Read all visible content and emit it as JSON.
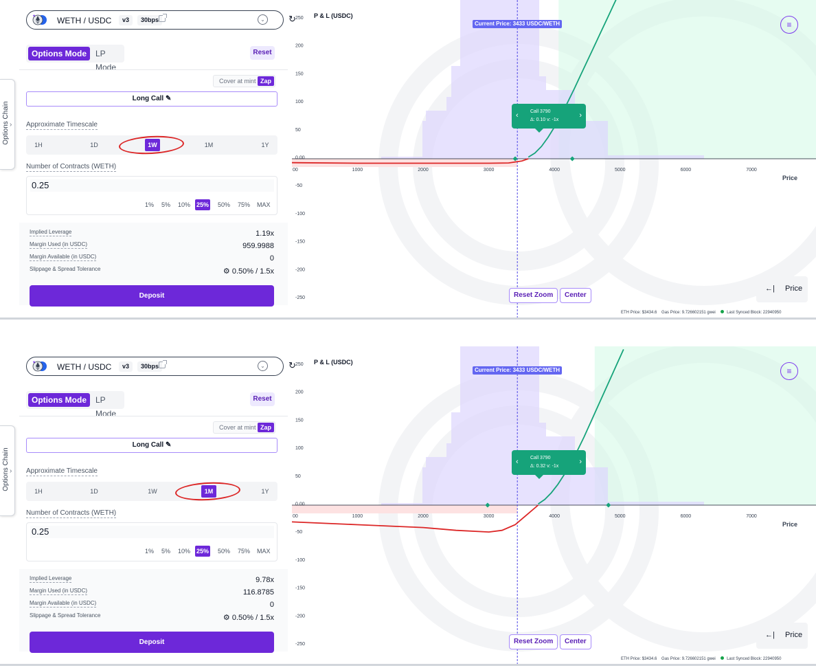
{
  "panels": [
    {
      "side_tab": {
        "label": "Options Chain",
        "chevron": "›"
      },
      "pair": {
        "name": "WETH / USDC",
        "version": "v3",
        "fee": "30bps",
        "refresh_icon": "↻"
      },
      "modes": {
        "options": "Options Mode",
        "lp": "LP Mode"
      },
      "reset": "Reset",
      "cover": {
        "label": "Cover at mint",
        "zap": "Zap"
      },
      "strategy": "Long Call ✎",
      "timescale": {
        "label": "Approximate Timescale",
        "options": [
          "1H",
          "1D",
          "1W",
          "1M",
          "1Y"
        ],
        "selected": "1W"
      },
      "contracts": {
        "label": "Number of Contracts (WETH)",
        "value": "0.25",
        "percents": [
          "1%",
          "5%",
          "10%",
          "25%",
          "50%",
          "75%",
          "MAX"
        ],
        "selected_percent": "25%"
      },
      "stats": {
        "leverage_label": "Implied Leverage",
        "leverage": "1.19x",
        "margin_used_label": "Margin Used (in USDC)",
        "margin_used": "959.9988",
        "margin_available_label": "Margin Available (in USDC)",
        "margin_available": "0",
        "slippage_label": "Slippage & Spread Tolerance",
        "slippage": "⚙ 0.50% / 1.5x"
      },
      "deposit": "Deposit",
      "chart_data": {
        "type": "line",
        "title": "P & L (USDC)",
        "xlabel": "Price",
        "ylabel": "P & L (USDC)",
        "x_ticks": [
          "00",
          "1000",
          "2000",
          "3000",
          "4000",
          "5000",
          "6000",
          "7000"
        ],
        "y_ticks": [
          "250",
          "200",
          "150",
          "100",
          "50",
          "0.00",
          "-50",
          "-100",
          "-150",
          "-200",
          "-250"
        ],
        "ylim": [
          -250,
          250
        ],
        "current_price_label": "Current Price: 3433 USDC/WETH",
        "current_price": 3433,
        "series": [
          {
            "color": "#16a37a",
            "x": [
              3600,
              3700,
              3800,
              3900,
              4000,
              4100,
              4200,
              4300,
              4400,
              4500,
              4600,
              4700,
              4800,
              4900,
              5000
            ],
            "y": [
              3,
              10,
              22,
              38,
              57,
              78,
              101,
              125,
              150,
              175,
              200,
              225,
              250,
              275,
              300
            ]
          },
          {
            "color": "#dc2626",
            "x": [
              0,
              1000,
              2000,
              3000,
              3300,
              3500,
              3600
            ],
            "y": [
              -7,
              -8,
              -8,
              -8,
              -7.5,
              -4,
              0
            ]
          }
        ],
        "breakeven_markers": [
          3400,
          4270
        ],
        "tooltip": {
          "line1": "Call 3790",
          "line2": "Δ: 0.10   v: -1x",
          "prev": "‹",
          "next": "›"
        },
        "menu_icon": "≡",
        "buttons": {
          "reset_zoom": "Reset Zoom",
          "center": "Center"
        },
        "price_toggle": {
          "arrow": "←|",
          "label": "Price"
        }
      },
      "status": {
        "eth_price": "ETH Price: $3434.6",
        "gas_price": "Gas Price: 9.726602151 gwei",
        "last_block": "Last Synced Block: 22940950"
      }
    },
    {
      "side_tab": {
        "label": "Options Chain",
        "chevron": "›"
      },
      "pair": {
        "name": "WETH / USDC",
        "version": "v3",
        "fee": "30bps",
        "refresh_icon": "↻"
      },
      "modes": {
        "options": "Options Mode",
        "lp": "LP Mode"
      },
      "reset": "Reset",
      "cover": {
        "label": "Cover at mint",
        "zap": "Zap"
      },
      "strategy": "Long Call ✎",
      "timescale": {
        "label": "Approximate Timescale",
        "options": [
          "1H",
          "1D",
          "1W",
          "1M",
          "1Y"
        ],
        "selected": "1M"
      },
      "contracts": {
        "label": "Number of Contracts (WETH)",
        "value": "0.25",
        "percents": [
          "1%",
          "5%",
          "10%",
          "25%",
          "50%",
          "75%",
          "MAX"
        ],
        "selected_percent": "25%"
      },
      "stats": {
        "leverage_label": "Implied Leverage",
        "leverage": "9.78x",
        "margin_used_label": "Margin Used (in USDC)",
        "margin_used": "116.8785",
        "margin_available_label": "Margin Available (in USDC)",
        "margin_available": "0",
        "slippage_label": "Slippage & Spread Tolerance",
        "slippage": "⚙ 0.50% / 1.5x"
      },
      "deposit": "Deposit",
      "chart_data": {
        "type": "line",
        "title": "P & L (USDC)",
        "xlabel": "Price",
        "ylabel": "P & L (USDC)",
        "x_ticks": [
          "00",
          "1000",
          "2000",
          "3000",
          "4000",
          "5000",
          "6000",
          "7000"
        ],
        "y_ticks": [
          "250",
          "200",
          "150",
          "100",
          "50",
          "0.00",
          "-50",
          "-100",
          "-150",
          "-200",
          "-250"
        ],
        "ylim": [
          -250,
          250
        ],
        "current_price_label": "Current Price: 3433 USDC/WETH",
        "current_price": 3433,
        "series": [
          {
            "color": "#16a37a",
            "x": [
              3750,
              3850,
              3950,
              4050,
              4150,
              4250,
              4350,
              4450,
              4550,
              4650,
              4750,
              4850,
              4950,
              5050
            ],
            "y": [
              2,
              10,
              22,
              37,
              55,
              75,
              98,
              122,
              148,
              174,
              200,
              226,
              252,
              278
            ]
          },
          {
            "color": "#dc2626",
            "x": [
              0,
              1000,
              2000,
              2500,
              3000,
              3200,
              3400,
              3600,
              3750
            ],
            "y": [
              -30,
              -35,
              -40,
              -45,
              -48,
              -45,
              -35,
              -15,
              0
            ]
          }
        ],
        "breakeven_markers": [
          2980,
          4820
        ],
        "tooltip": {
          "line1": "Call 3790",
          "line2": "Δ: 0.32   v: -1x",
          "prev": "‹",
          "next": "›"
        },
        "menu_icon": "≡",
        "buttons": {
          "reset_zoom": "Reset Zoom",
          "center": "Center"
        },
        "price_toggle": {
          "arrow": "←|",
          "label": "Price"
        }
      },
      "status": {
        "eth_price": "ETH Price: $3434.6",
        "gas_price": "Gas Price: 9.726602151 gwei",
        "last_block": "Last Synced Block: 22940950"
      }
    }
  ],
  "colors": {
    "accent": "#6d28d9",
    "profit": "#16a37a",
    "loss": "#dc2626",
    "price_line": "#6366f1"
  }
}
